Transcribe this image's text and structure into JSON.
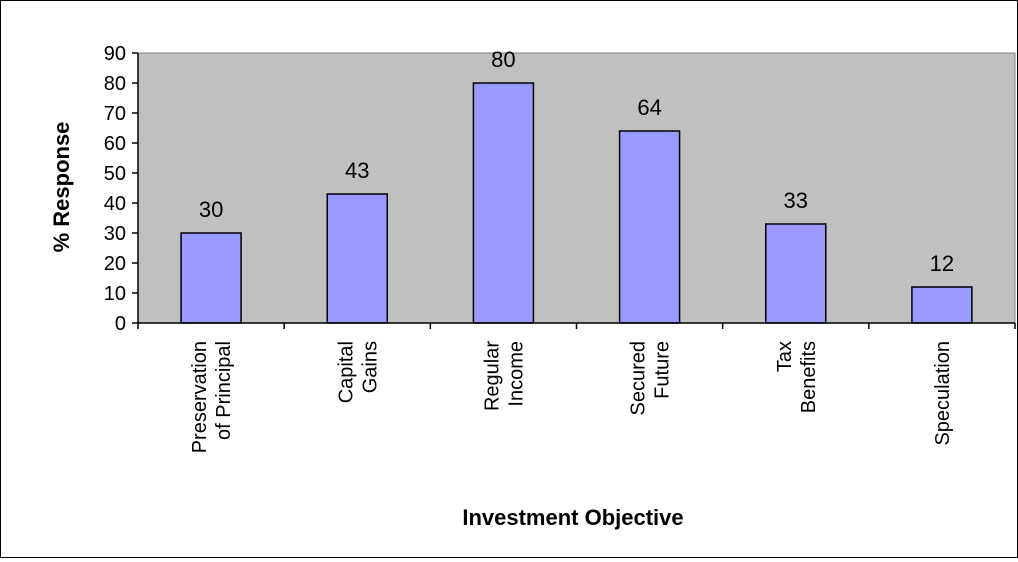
{
  "chart_data": {
    "type": "bar",
    "title": "",
    "xlabel": "Investment Objective",
    "ylabel": "% Response",
    "categories": [
      [
        "Preservation",
        "of Principal"
      ],
      [
        "Capital",
        "Gains"
      ],
      [
        "Regular",
        "Income"
      ],
      [
        "Secured",
        "Future"
      ],
      [
        "Tax",
        "Benefits"
      ],
      [
        "Speculation"
      ]
    ],
    "values": [
      30,
      43,
      80,
      64,
      33,
      12
    ],
    "data_labels": [
      "30",
      "43",
      "80",
      "64",
      "33",
      "12"
    ],
    "ylim": [
      0,
      90
    ],
    "yticks": [
      0,
      10,
      20,
      30,
      40,
      50,
      60,
      70,
      80,
      90
    ],
    "grid": false,
    "legend": "none",
    "colors": {
      "plot_background": "#c0c0c0",
      "bar_fill": "#9999ff",
      "bar_stroke": "#000000",
      "axis": "#000000"
    }
  }
}
